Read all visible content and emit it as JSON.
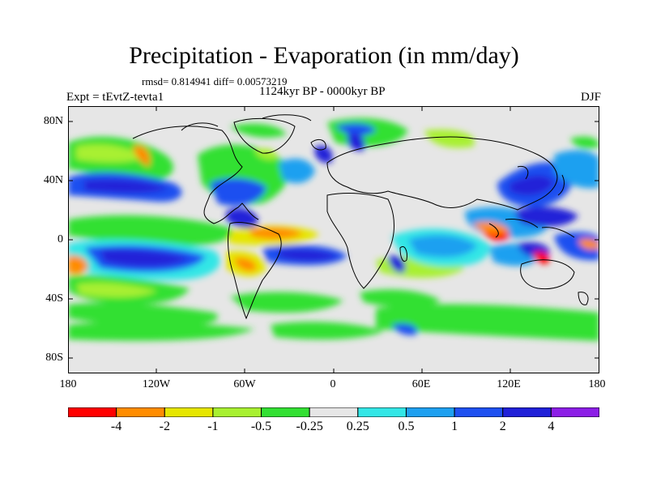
{
  "title": "Precipitation - Evaporation (in mm/day)",
  "stats": "rmsd= 0.814941 diff= 0.00573219",
  "experiment": "Expt = tEvtZ-tevta1",
  "period": "1124kyr BP - 0000kyr BP",
  "season": "DJF",
  "y_axis_labels": [
    "80N",
    "40N",
    "0",
    "40S",
    "80S"
  ],
  "x_axis_labels": [
    "180",
    "120W",
    "60W",
    "0",
    "60E",
    "120E",
    "180"
  ],
  "colorbar": {
    "colors": [
      "#ff0000",
      "#ff8c00",
      "#e6e600",
      "#a8f030",
      "#33e033",
      "#e6e6e6",
      "#33e6e6",
      "#1ea0f0",
      "#1e50f0",
      "#2020d8",
      "#8c1ee6"
    ],
    "labels": [
      "-4",
      "-2",
      "-1",
      "-0.5",
      "-0.25",
      "0.25",
      "0.5",
      "1",
      "2",
      "4"
    ]
  }
}
